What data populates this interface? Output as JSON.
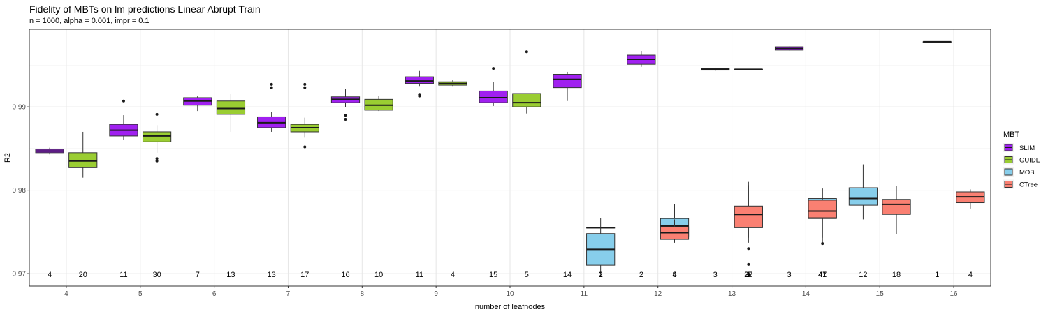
{
  "chart_data": {
    "type": "boxplot",
    "title": "Fidelity of MBTs on lm predictions Linear Abrupt Train",
    "subtitle": "n = 1000, alpha = 0.001, impr = 0.1",
    "xlabel": "number of leafnodes",
    "ylabel": "R2",
    "categories": [
      "4",
      "5",
      "6",
      "7",
      "8",
      "9",
      "10",
      "11",
      "12",
      "13",
      "14",
      "15",
      "16"
    ],
    "yticks": [
      0.97,
      0.98,
      0.99
    ],
    "ytick_labels": [
      "0.97",
      "0.98",
      "0.99"
    ],
    "ylim": [
      0.9685,
      0.9993
    ],
    "legend": {
      "title": "MBT",
      "position": "right"
    },
    "series": [
      {
        "name": "SLIM",
        "color": "#a020f0",
        "boxes": [
          {
            "x": "4",
            "min": 0.9843,
            "q1": 0.9845,
            "median": 0.9847,
            "q3": 0.9849,
            "max": 0.9851,
            "outliers": [],
            "count": 4
          },
          {
            "x": "5",
            "min": 0.986,
            "q1": 0.9865,
            "median": 0.9872,
            "q3": 0.9879,
            "max": 0.989,
            "outliers": [
              0.9907
            ],
            "count": 11
          },
          {
            "x": "6",
            "min": 0.9895,
            "q1": 0.9902,
            "median": 0.9907,
            "q3": 0.9911,
            "max": 0.9913,
            "outliers": [],
            "count": 7
          },
          {
            "x": "7",
            "min": 0.987,
            "q1": 0.9875,
            "median": 0.9881,
            "q3": 0.9888,
            "max": 0.9894,
            "outliers": [
              0.9923,
              0.9927
            ],
            "count": 13
          },
          {
            "x": "8",
            "min": 0.99,
            "q1": 0.9905,
            "median": 0.9909,
            "q3": 0.9912,
            "max": 0.9921,
            "outliers": [
              0.9885,
              0.989
            ],
            "count": 16
          },
          {
            "x": "9",
            "min": 0.9925,
            "q1": 0.9928,
            "median": 0.9931,
            "q3": 0.9936,
            "max": 0.9943,
            "outliers": [
              0.9913,
              0.9915
            ],
            "count": 11
          },
          {
            "x": "10",
            "min": 0.9901,
            "q1": 0.9905,
            "median": 0.9911,
            "q3": 0.9919,
            "max": 0.993,
            "outliers": [
              0.9946
            ],
            "count": 15
          },
          {
            "x": "11",
            "min": 0.9907,
            "q1": 0.9923,
            "median": 0.9933,
            "q3": 0.9939,
            "max": 0.9942,
            "outliers": [],
            "count": 14
          },
          {
            "x": "12",
            "min": 0.9948,
            "q1": 0.9951,
            "median": 0.9957,
            "q3": 0.9962,
            "max": 0.9967,
            "outliers": [],
            "count": 2
          },
          {
            "x": "13",
            "min": 0.9943,
            "q1": 0.9944,
            "median": 0.9945,
            "q3": 0.9946,
            "max": 0.9947,
            "outliers": [],
            "count": 3
          },
          {
            "x": "14",
            "min": 0.9967,
            "q1": 0.9968,
            "median": 0.997,
            "q3": 0.9972,
            "max": 0.9973,
            "outliers": [],
            "count": 3
          }
        ]
      },
      {
        "name": "GUIDE",
        "color": "#9acd32",
        "boxes": [
          {
            "x": "4",
            "min": 0.9815,
            "q1": 0.9827,
            "median": 0.9835,
            "q3": 0.9845,
            "max": 0.987,
            "outliers": [],
            "count": 20
          },
          {
            "x": "5",
            "min": 0.9845,
            "q1": 0.9858,
            "median": 0.9865,
            "q3": 0.987,
            "max": 0.9878,
            "outliers": [
              0.9835,
              0.9838,
              0.9891
            ],
            "count": 30
          },
          {
            "x": "6",
            "min": 0.987,
            "q1": 0.9891,
            "median": 0.9898,
            "q3": 0.9907,
            "max": 0.9916,
            "outliers": [],
            "count": 13
          },
          {
            "x": "7",
            "min": 0.9863,
            "q1": 0.987,
            "median": 0.9875,
            "q3": 0.9879,
            "max": 0.9887,
            "outliers": [
              0.9852,
              0.9923,
              0.9927
            ],
            "count": 17
          },
          {
            "x": "8",
            "min": 0.9895,
            "q1": 0.9896,
            "median": 0.9902,
            "q3": 0.9909,
            "max": 0.9913,
            "outliers": [],
            "count": 10
          },
          {
            "x": "9",
            "min": 0.9925,
            "q1": 0.9926,
            "median": 0.9928,
            "q3": 0.993,
            "max": 0.9932,
            "outliers": [],
            "count": 4
          },
          {
            "x": "10",
            "min": 0.9892,
            "q1": 0.99,
            "median": 0.9905,
            "q3": 0.9916,
            "max": 0.9916,
            "outliers": [
              0.9966
            ],
            "count": 5
          },
          {
            "x": "11",
            "min": 0.9755,
            "q1": 0.9755,
            "median": 0.9755,
            "q3": 0.9755,
            "max": 0.9755,
            "outliers": [],
            "count": 1
          },
          {
            "x": "13",
            "min": 0.9945,
            "q1": 0.9945,
            "median": 0.9945,
            "q3": 0.9945,
            "max": 0.9945,
            "outliers": [],
            "count": 1
          },
          {
            "x": "16",
            "min": 0.9978,
            "q1": 0.9978,
            "median": 0.9978,
            "q3": 0.9978,
            "max": 0.9978,
            "outliers": [],
            "count": 1
          }
        ]
      },
      {
        "name": "MOB",
        "color": "#87ceeb",
        "boxes": [
          {
            "x": "11",
            "min": 0.97,
            "q1": 0.971,
            "median": 0.9729,
            "q3": 0.9748,
            "max": 0.9767,
            "outliers": [],
            "count": 2
          },
          {
            "x": "12",
            "min": 0.9739,
            "q1": 0.9745,
            "median": 0.9757,
            "q3": 0.9766,
            "max": 0.9783,
            "outliers": [],
            "count": 8
          },
          {
            "x": "13",
            "min": 0.9743,
            "q1": 0.9764,
            "median": 0.9773,
            "q3": 0.978,
            "max": 0.9806,
            "outliers": [
              0.973
            ],
            "count": 37
          },
          {
            "x": "14",
            "min": 0.9735,
            "q1": 0.9766,
            "median": 0.9778,
            "q3": 0.979,
            "max": 0.9802,
            "outliers": [],
            "count": 41
          },
          {
            "x": "15",
            "min": 0.9765,
            "q1": 0.9782,
            "median": 0.979,
            "q3": 0.9803,
            "max": 0.9831,
            "outliers": [],
            "count": 12
          }
        ]
      },
      {
        "name": "CTree",
        "color": "#fa8072",
        "boxes": [
          {
            "x": "12",
            "min": 0.9737,
            "q1": 0.9741,
            "median": 0.9749,
            "q3": 0.9756,
            "max": 0.9765,
            "outliers": [],
            "count": 4
          },
          {
            "x": "13",
            "min": 0.9737,
            "q1": 0.9755,
            "median": 0.9771,
            "q3": 0.9781,
            "max": 0.981,
            "outliers": [
              0.9711
            ],
            "count": 26
          },
          {
            "x": "14",
            "min": 0.9743,
            "q1": 0.9767,
            "median": 0.9775,
            "q3": 0.9788,
            "max": 0.9802,
            "outliers": [
              0.9736
            ],
            "count": 47
          },
          {
            "x": "15",
            "min": 0.9747,
            "q1": 0.9771,
            "median": 0.9783,
            "q3": 0.9789,
            "max": 0.9805,
            "outliers": [],
            "count": 18
          },
          {
            "x": "16",
            "min": 0.9778,
            "q1": 0.9785,
            "median": 0.9792,
            "q3": 0.9798,
            "max": 0.9801,
            "outliers": [],
            "count": 4
          }
        ]
      }
    ]
  }
}
